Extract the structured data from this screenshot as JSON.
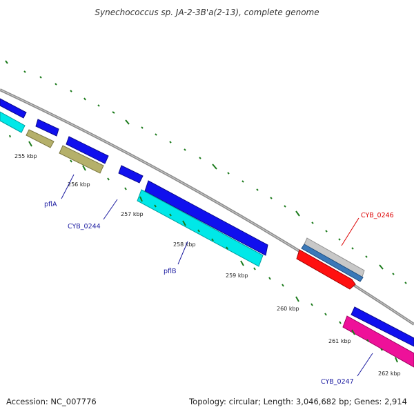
{
  "title": "Synechococcus sp. JA-2-3B'a(2-13), complete genome",
  "footer": {
    "accession": "Accession: NC_007776",
    "summary": "Topology: circular; Length: 3,046,682 bp; Genes: 2,914"
  },
  "colors": {
    "backbone": "#888888",
    "tick": "#1a7a1a",
    "label_blue": "#1a1aa0",
    "label_red": "#dd0000",
    "cds_blue": "#1010ee",
    "cds_cyan": "#00e8e8",
    "cds_olive": "#b5b06a",
    "cds_red": "#ff1010",
    "cds_gray": "#c8c8c8",
    "cds_steel": "#3a78b8",
    "cds_magenta": "#ee1199"
  },
  "ticks": [
    "255 kbp",
    "256 kbp",
    "257 kbp",
    "258 kbp",
    "259 kbp",
    "260 kbp",
    "261 kbp",
    "262 kbp"
  ],
  "gene_labels": [
    "pflA",
    "CYB_0244",
    "pflB",
    "CYB_0246",
    "CYB_0247"
  ]
}
